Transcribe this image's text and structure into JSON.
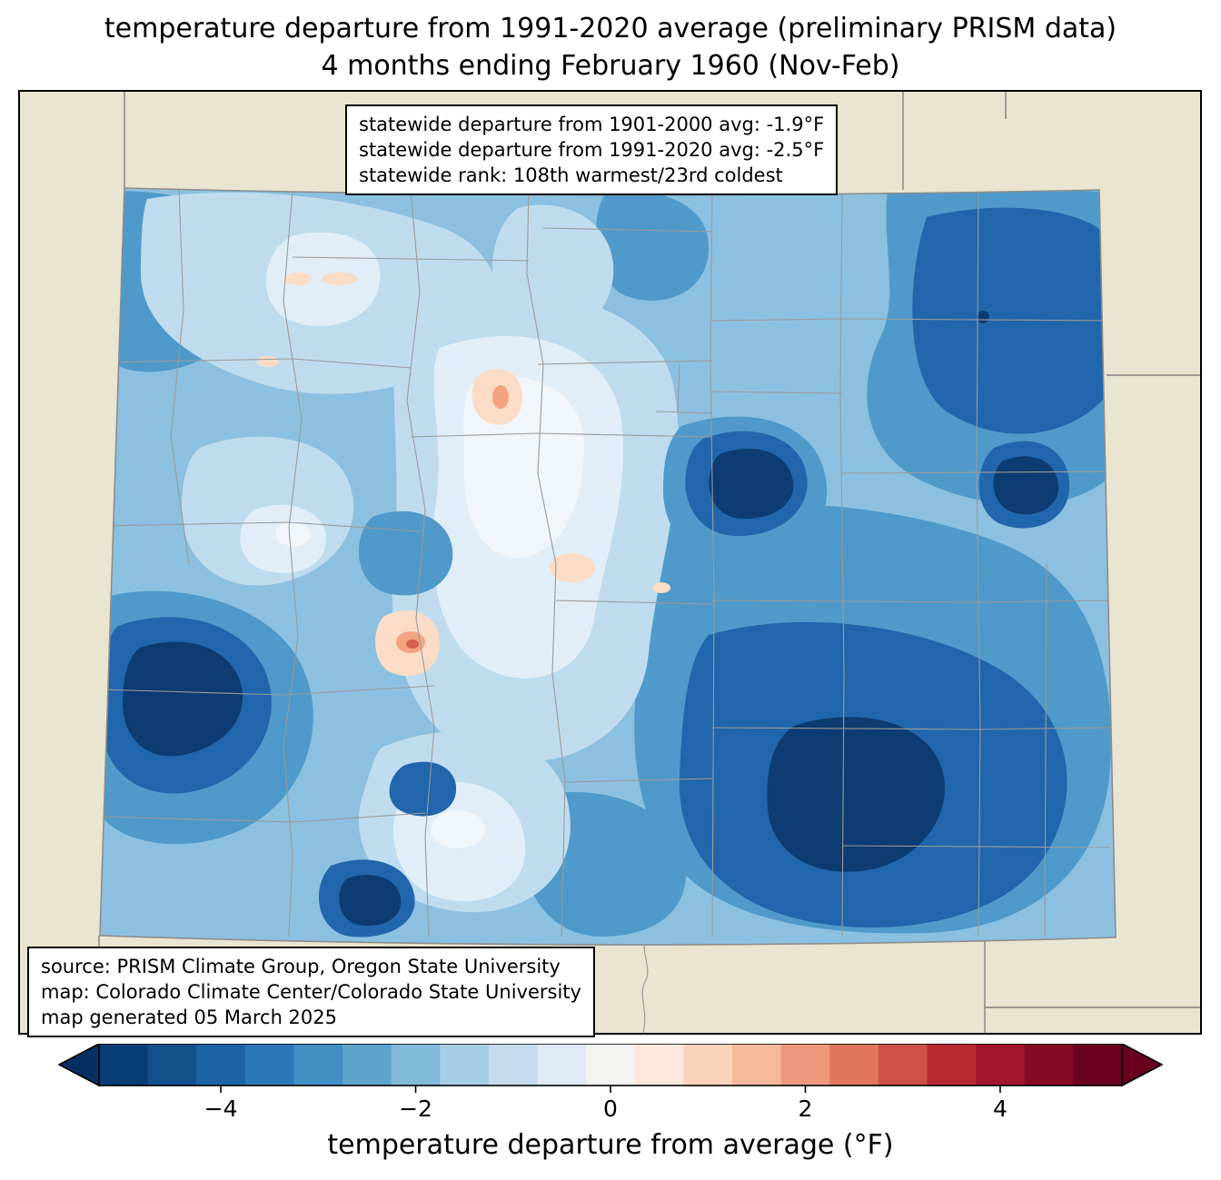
{
  "title": {
    "line1": "temperature departure from 1991-2020 average (preliminary PRISM data)",
    "line2": "4 months ending February 1960 (Nov-Feb)"
  },
  "stats_box": {
    "line1": "statewide departure from 1901-2000 avg: -1.9°F",
    "line2": "statewide departure from 1991-2020 avg: -2.5°F",
    "line3": "statewide rank: 108th warmest/23rd coldest"
  },
  "source_box": {
    "line1": "source: PRISM Climate Group, Oregon State University",
    "line2": "map: Colorado Climate Center/Colorado State University",
    "line3": "map generated 05 March 2025"
  },
  "colorbar": {
    "label": "temperature departure from average (°F)",
    "vmin": -5.25,
    "vmax": 5.25,
    "ticks": [
      {
        "value": -4,
        "label": "−4"
      },
      {
        "value": -2,
        "label": "−2"
      },
      {
        "value": 0,
        "label": "0"
      },
      {
        "value": 2,
        "label": "2"
      },
      {
        "value": 4,
        "label": "4"
      }
    ],
    "segment_colors": [
      "#083c75",
      "#12508c",
      "#1c64a6",
      "#2b78b8",
      "#4090c5",
      "#5ea4cd",
      "#82bad9",
      "#a5cee4",
      "#c4dcef",
      "#dfeaf5",
      "#f3f3f1",
      "#fbe8db",
      "#f9d3bb",
      "#f6b899",
      "#ee997b",
      "#e0775e",
      "#ce5146",
      "#bb2a33",
      "#a2152c",
      "#860a25",
      "#6b0120"
    ],
    "under_color": "#053061",
    "over_color": "#67001f"
  },
  "colors": {
    "background_land": "#e9e5d1",
    "county_line": "#9a9a9a",
    "state_line": "#808080",
    "frame": "#000000"
  }
}
